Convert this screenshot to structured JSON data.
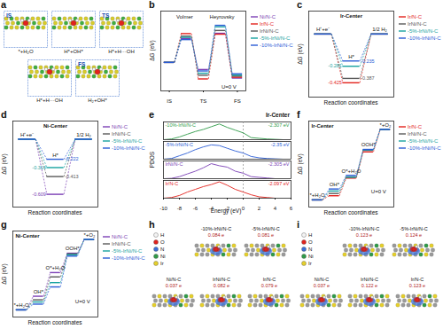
{
  "chart_data": [
    {
      "panel": "a",
      "type": "diagram",
      "states": [
        {
          "stage": "IS",
          "label": "*+H₂O"
        },
        {
          "label": "H*+OH*"
        },
        {
          "stage": "TS",
          "label": "H*+H···OH"
        },
        {
          "label": "H*+H···OH"
        },
        {
          "stage": "FS",
          "label": "H₂+OH*"
        }
      ]
    },
    {
      "panel": "b",
      "type": "energy_diagram",
      "y_label": "ΔG (eV)",
      "categories": [
        "IS",
        null,
        "TS",
        null,
        "FS"
      ],
      "ylim": [
        -1.0,
        1.8
      ],
      "tick_labels": "x",
      "legend": "right",
      "annotations": [
        {
          "text": "Volmer",
          "x": 0.9,
          "y": 1.6
        },
        {
          "text": "Heyrovsky",
          "x": 3.1,
          "y": 1.6
        },
        {
          "text": "U=0 V",
          "x": 3.5,
          "y": -0.85
        }
      ],
      "series": [
        {
          "name": "Ni/N-C",
          "color": "#7b3fb5",
          "values": [
            0,
            0.84,
            -0.25,
            1.02,
            -0.55
          ]
        },
        {
          "name": "Ir/N-C",
          "color": "#e3211c",
          "values": [
            0,
            1.01,
            -0.58,
            0.99,
            -0.52
          ]
        },
        {
          "name": "IrNi/N-C",
          "color": "#595959",
          "values": [
            0,
            0.92,
            -0.45,
            1.12,
            -0.48
          ]
        },
        {
          "name": "-5%-IrNi/N-C",
          "color": "#17a2a0",
          "values": [
            0,
            0.88,
            -0.38,
            1.25,
            -0.45
          ]
        },
        {
          "name": "-10%-IrNi/N-C",
          "color": "#2a5cd6",
          "values": [
            0,
            0.8,
            -0.3,
            1.3,
            -0.4
          ]
        }
      ]
    },
    {
      "panel": "c",
      "type": "energy_diagram",
      "annotation": "Ir-Center",
      "x_label": "Reaction coordinates",
      "y_label": "ΔG (eV)",
      "states": [
        "H⁺+e⁻",
        "H*",
        "1/2 H₂"
      ],
      "ylim": [
        -0.55,
        0.2
      ],
      "tick_labels": false,
      "data_labels": true,
      "legend": "right",
      "series": [
        {
          "name": "Ir/N-C",
          "color": "#e3211c",
          "values": [
            0,
            -0.425,
            0
          ],
          "value_labels": [
            null,
            "-0.425",
            null
          ]
        },
        {
          "name": "IrNi/N-C",
          "color": "#595959",
          "values": [
            0,
            -0.387,
            0
          ],
          "value_labels": [
            null,
            "-0.387",
            null
          ]
        },
        {
          "name": "-5%-IrNi/N-C",
          "color": "#17a2a0",
          "values": [
            0,
            -0.281,
            0
          ],
          "value_labels": [
            null,
            "-0.281",
            null
          ]
        },
        {
          "name": "-10%-IrNi/N-C",
          "color": "#2a5cd6",
          "values": [
            0,
            -0.235,
            0
          ],
          "value_labels": [
            null,
            "-0.235",
            null
          ]
        }
      ]
    },
    {
      "panel": "d",
      "type": "energy_diagram",
      "annotation": "Ni-Center",
      "x_label": "Reaction coordinates",
      "y_label": "ΔG (eV)",
      "states": [
        "H⁺+e⁻",
        "H*",
        "1/2 H₂"
      ],
      "ylim": [
        -0.75,
        0.2
      ],
      "tick_labels": false,
      "data_labels": true,
      "legend": "right",
      "series": [
        {
          "name": "Ni/N-C",
          "color": "#7b3fb5",
          "values": [
            0,
            -0.609,
            0
          ],
          "value_labels": [
            null,
            "-0.609",
            null
          ]
        },
        {
          "name": "IrNi/N-C",
          "color": "#595959",
          "values": [
            0,
            -0.413,
            0
          ],
          "value_labels": [
            null,
            "-0.413",
            null
          ]
        },
        {
          "name": "-5%-IrNi/N-C",
          "color": "#17a2a0",
          "values": [
            0,
            -0.314,
            0
          ],
          "value_labels": [
            null,
            "-0.314",
            null
          ]
        },
        {
          "name": "-10%-IrNi/N-C",
          "color": "#2a5cd6",
          "values": [
            0,
            -0.222,
            0
          ],
          "value_labels": [
            null,
            "-0.222",
            null
          ]
        }
      ]
    },
    {
      "panel": "e",
      "type": "line",
      "annotation": "Ir-Center",
      "x_label": "Energy (eV)",
      "y_label": "PDOS",
      "x": [
        -10,
        -9,
        -8,
        -7,
        -6,
        -5,
        -4,
        -3,
        -2,
        -1,
        0,
        1,
        2,
        3,
        4,
        5,
        6
      ],
      "xlim": [
        -10,
        6
      ],
      "xticks": [
        -10,
        -8,
        -6,
        -4,
        -2,
        0,
        2,
        4,
        6
      ],
      "ylim": [
        0,
        2.6
      ],
      "tick_labels": "x",
      "fermi_level": 0,
      "series": [
        {
          "name": "-10%-IrNi/N-C",
          "color": "#2f9b48",
          "d_band_label": "-2.307 eV",
          "values": [
            0,
            0.1,
            0.4,
            0.8,
            1.2,
            1.5,
            1.9,
            2.3,
            1.8,
            1.4,
            1.0,
            0.3,
            0.2,
            0.1,
            0.05,
            0,
            0
          ]
        },
        {
          "name": "-5%-IrNi/N-C",
          "color": "#2a5cd6",
          "d_band_label": "-2.35 eV",
          "values": [
            0,
            0.1,
            0.5,
            0.9,
            1.4,
            1.8,
            2.1,
            2.0,
            1.6,
            1.2,
            0.9,
            0.4,
            0.2,
            0.1,
            0.05,
            0,
            0
          ]
        },
        {
          "name": "IrNi/N-C",
          "color": "#7b3fb5",
          "d_band_label": "-2.305 eV",
          "values": [
            0,
            0.05,
            0.3,
            0.7,
            1.1,
            1.6,
            2.2,
            1.9,
            1.7,
            1.1,
            0.8,
            0.3,
            0.2,
            0.1,
            0,
            0,
            0
          ]
        },
        {
          "name": "Ir/N-C",
          "color": "#e3211c",
          "d_band_label": "-2.097 eV",
          "values": [
            0,
            0.1,
            0.4,
            0.9,
            1.3,
            1.7,
            2.0,
            2.4,
            1.9,
            1.3,
            0.9,
            0.5,
            0.2,
            0.1,
            0,
            0,
            0
          ]
        }
      ]
    },
    {
      "panel": "f",
      "type": "energy_diagram",
      "annotation": "Ir-Center",
      "x_label": "Reaction coordinates",
      "y_label": "ΔG (eV)",
      "states": [
        "*+H₂O",
        "OH*",
        "O*+H₂O",
        "OOH*",
        "*+O₂"
      ],
      "ylim": [
        -0.5,
        5.5
      ],
      "tick_labels": false,
      "legend": "right",
      "annotations": [
        {
          "text": "U=0 V",
          "x": 3.6,
          "y": 0.6
        }
      ],
      "series": [
        {
          "name": "Ir/N-C",
          "color": "#e3211c",
          "values": [
            0,
            0.29,
            1.52,
            3.35,
            4.92
          ]
        },
        {
          "name": "IrNi/N-C",
          "color": "#595959",
          "values": [
            0,
            0.45,
            1.6,
            3.46,
            4.92
          ]
        },
        {
          "name": "-5%-IrNi/N-C",
          "color": "#17a2a0",
          "values": [
            0,
            0.62,
            1.58,
            3.49,
            4.92
          ]
        },
        {
          "name": "-10%-IrNi/N-C",
          "color": "#2a5cd6",
          "values": [
            0,
            0.76,
            1.71,
            3.52,
            4.92
          ]
        }
      ]
    },
    {
      "panel": "g",
      "type": "energy_diagram",
      "annotation": "Ni-Center",
      "x_label": "Reaction coordinates",
      "y_label": "ΔG (eV)",
      "states": [
        "*+H₂O",
        "OH*",
        "O*+H₂O",
        "OOH*",
        "*+O₂"
      ],
      "ylim": [
        -0.5,
        5.5
      ],
      "tick_labels": false,
      "legend": "right",
      "annotations": [
        {
          "text": "U=0 V",
          "x": 3.6,
          "y": 0.6
        }
      ],
      "series": [
        {
          "name": "Ni/N-C",
          "color": "#7b3fb5",
          "values": [
            0,
            0.95,
            2.6,
            3.95,
            4.92
          ]
        },
        {
          "name": "IrNi/N-C",
          "color": "#595959",
          "values": [
            0,
            0.7,
            2.3,
            3.9,
            4.92
          ]
        },
        {
          "name": "-5%-IrNi/N-C",
          "color": "#17a2a0",
          "values": [
            0,
            0.55,
            1.9,
            3.85,
            4.92
          ]
        },
        {
          "name": "-10%-IrNi/N-C",
          "color": "#2a5cd6",
          "values": [
            0,
            0.4,
            1.6,
            3.75,
            4.92
          ]
        }
      ]
    },
    {
      "panel": "h",
      "type": "charge_density",
      "elements": [
        {
          "name": "H",
          "color": "#f4f4f4"
        },
        {
          "name": "O",
          "color": "#e3211c"
        },
        {
          "name": "N",
          "color": "#3b6fd8"
        },
        {
          "name": "Ni",
          "color": "#2f9b48"
        },
        {
          "name": "Ir",
          "color": "#e6d02a"
        }
      ],
      "structures": [
        {
          "label": "-10%-IrNi/N-C",
          "charge": "0.084 e"
        },
        {
          "label": "-5%-IrNi/N-C",
          "charge": "0.081 e"
        },
        {
          "label": "Ni/N-C",
          "charge": "0.037 e"
        },
        {
          "label": "IrNi/N-C",
          "charge": "0.082 e"
        },
        {
          "label": "Ir/N-C",
          "charge": "0.079 e"
        }
      ]
    },
    {
      "panel": "i",
      "type": "charge_density",
      "elements": [
        {
          "name": "H",
          "color": "#f4f4f4"
        },
        {
          "name": "O",
          "color": "#e3211c"
        },
        {
          "name": "N",
          "color": "#3b6fd8"
        },
        {
          "name": "Ni",
          "color": "#2f9b48"
        },
        {
          "name": "Ir",
          "color": "#e6d02a"
        }
      ],
      "structures": [
        {
          "label": "-10%-IrNi/N-C",
          "charge": "0.123 e"
        },
        {
          "label": "-5%-IrNi/N-C",
          "charge": "0.124 e"
        },
        {
          "label": "Ni/N-C",
          "charge": "0.037 e"
        },
        {
          "label": "IrNi/N-C",
          "charge": "0.122 e"
        },
        {
          "label": "Ir/N-C",
          "charge": "0.123 e"
        }
      ]
    }
  ]
}
